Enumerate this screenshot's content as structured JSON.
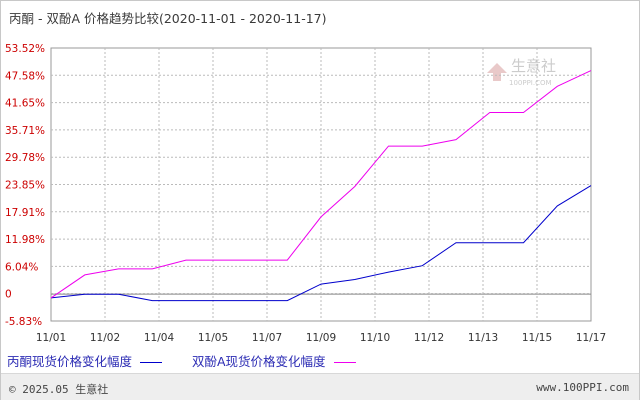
{
  "title": "丙酮 - 双酚A 价格趋势比较(2020-11-01 - 2020-11-17)",
  "watermark": {
    "name": "生意社",
    "url": "100PPI.COM"
  },
  "footer": {
    "copyright": "© 2025.05 生意社",
    "site": "www.100PPI.com"
  },
  "colors": {
    "series1": "#0000cc",
    "series2": "#ee00ee",
    "ytick": "#cc0000",
    "grid": "#bbbbbb"
  },
  "chart_data": {
    "type": "line",
    "title": "丙酮 - 双酚A 价格趋势比较(2020-11-01 - 2020-11-17)",
    "x_ticks": [
      "11/01",
      "11/02",
      "11/04",
      "11/05",
      "11/07",
      "11/09",
      "11/10",
      "11/12",
      "11/13",
      "11/15",
      "11/17"
    ],
    "y_ticks": [
      "53.52%",
      "47.58%",
      "41.65%",
      "35.71%",
      "29.78%",
      "23.85%",
      "17.91%",
      "11.98%",
      "6.04%",
      "0",
      "-5.83%"
    ],
    "ylim": [
      -5.83,
      53.52
    ],
    "x_range": [
      0,
      16
    ],
    "grid": true,
    "legend_position": "bottom-left",
    "series": [
      {
        "name": "丙酮现货价格变化幅度",
        "color": "#0000cc",
        "x": [
          0,
          1,
          2,
          3,
          4,
          5,
          6,
          7,
          8,
          9,
          10,
          11,
          12,
          13,
          14,
          15,
          16
        ],
        "y": [
          -0.8,
          0,
          0,
          -1.4,
          -1.4,
          -1.4,
          -1.4,
          -1.4,
          2.2,
          3.2,
          4.8,
          6.2,
          11.2,
          11.2,
          11.2,
          19.2,
          23.6
        ]
      },
      {
        "name": "双酚A现货价格变化幅度",
        "color": "#ee00ee",
        "x": [
          0,
          1,
          2,
          3,
          4,
          5,
          6,
          7,
          8,
          9,
          10,
          11,
          12,
          13,
          14,
          15,
          16
        ],
        "y": [
          -0.8,
          4.2,
          5.5,
          5.5,
          7.4,
          7.4,
          7.4,
          7.4,
          16.8,
          23.4,
          32.2,
          32.2,
          33.6,
          39.5,
          39.5,
          45.2,
          48.6
        ]
      }
    ]
  }
}
